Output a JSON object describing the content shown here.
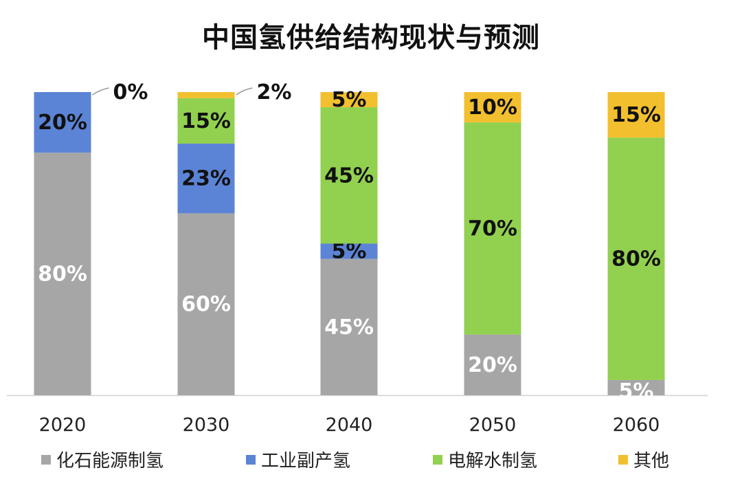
{
  "chart_data": {
    "type": "bar",
    "stacked": true,
    "percent": true,
    "title": "中国氢供给结构现状与预测",
    "categories": [
      "2020",
      "2030",
      "2040",
      "2050",
      "2060"
    ],
    "series": [
      {
        "name": "化石能源制氢",
        "color": "#a6a6a6",
        "values": [
          80,
          60,
          45,
          20,
          5
        ],
        "labels": [
          "80%",
          "60%",
          "45%",
          "20%",
          "5%"
        ],
        "label_color": "#ffffff"
      },
      {
        "name": "工业副产氢",
        "color": "#5b84d6",
        "values": [
          20,
          23,
          5,
          0,
          0
        ],
        "labels": [
          "20%",
          "23%",
          "5%",
          "",
          ""
        ],
        "label_color": "#111111"
      },
      {
        "name": "电解水制氢",
        "color": "#92d050",
        "values": [
          0,
          15,
          45,
          70,
          80
        ],
        "labels": [
          "",
          "15%",
          "45%",
          "70%",
          "80%"
        ],
        "label_color": "#111111"
      },
      {
        "name": "其他",
        "color": "#f2bf2e",
        "values": [
          0,
          2,
          5,
          10,
          15
        ],
        "labels": [
          "0%",
          "2%",
          "5%",
          "10%",
          "15%"
        ],
        "label_color": "#111111"
      }
    ],
    "ylim": [
      0,
      100
    ],
    "legend_position": "bottom",
    "grid": false
  }
}
